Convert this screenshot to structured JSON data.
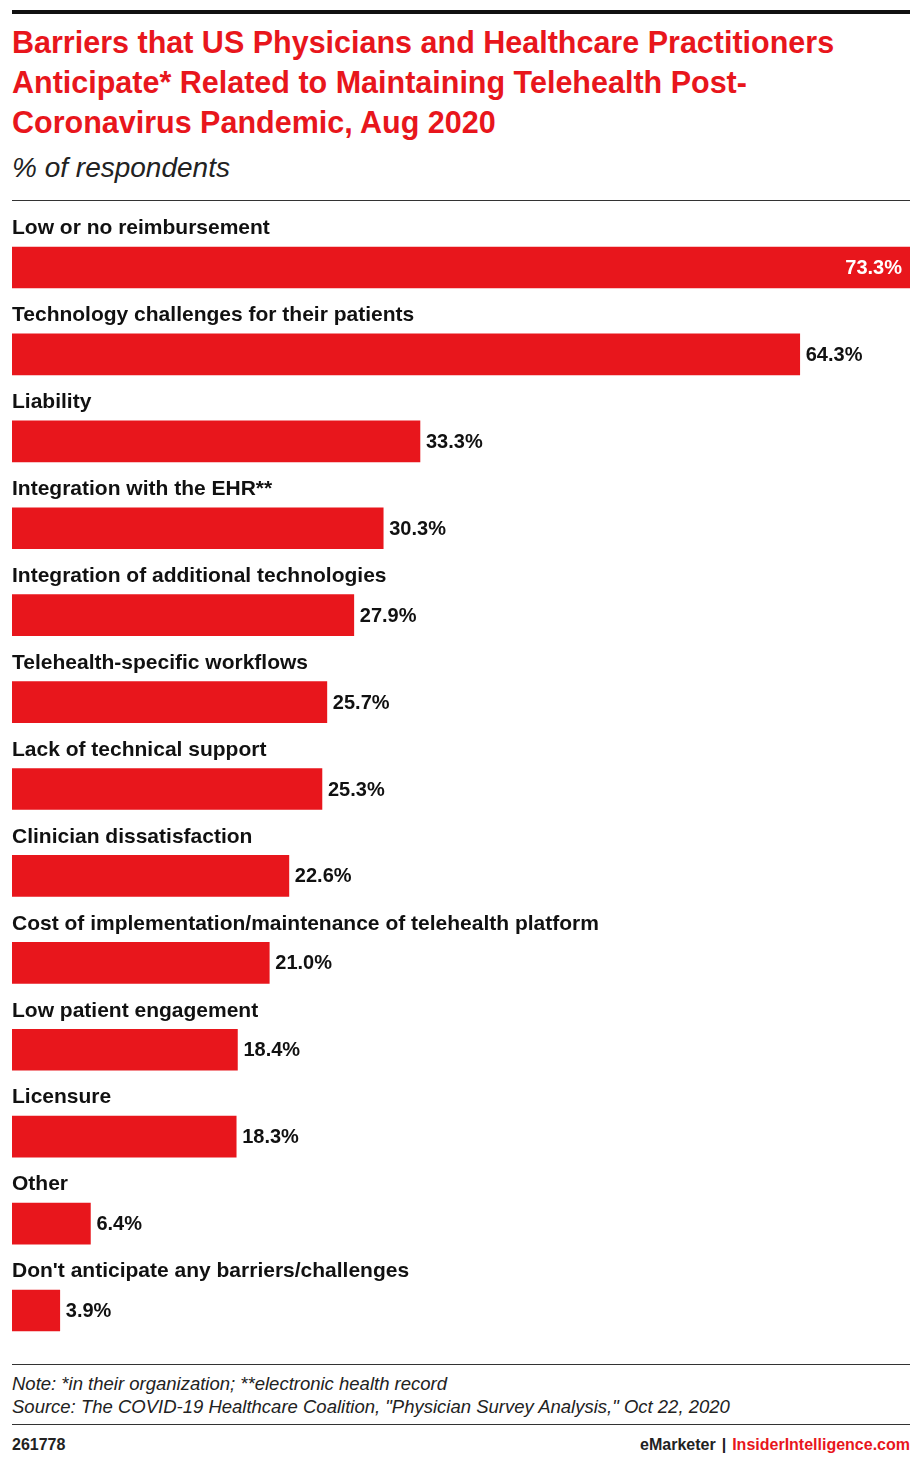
{
  "chart_data": {
    "type": "bar",
    "orientation": "horizontal",
    "title": "Barriers that US Physicians and Healthcare Practitioners Anticipate* Related to Maintaining Telehealth Post-Coronavirus Pandemic, Aug 2020",
    "subtitle": "% of respondents",
    "categories": [
      "Low or no reimbursement",
      "Technology challenges for their patients",
      "Liability",
      "Integration with the EHR**",
      "Integration of additional technologies",
      "Telehealth-specific workflows",
      "Lack of technical support",
      "Clinician dissatisfaction",
      "Cost of implementation/maintenance of telehealth platform",
      "Low patient engagement",
      "Licensure",
      "Other",
      "Don't anticipate any barriers/challenges"
    ],
    "values": [
      73.3,
      64.3,
      33.3,
      30.3,
      27.9,
      25.7,
      25.3,
      22.6,
      21.0,
      18.4,
      18.3,
      6.4,
      3.9
    ],
    "value_labels": [
      "73.3%",
      "64.3%",
      "33.3%",
      "30.3%",
      "27.9%",
      "25.7%",
      "25.3%",
      "22.6%",
      "21.0%",
      "18.4%",
      "18.3%",
      "6.4%",
      "3.9%"
    ],
    "color": "#e8161c",
    "xlim": [
      0,
      73.3
    ],
    "grid": false,
    "data_labels": true,
    "tick_labels": false,
    "note": "Note: *in their organization; **electronic health record",
    "source": "Source: The COVID-19 Healthcare Coalition, \"Physician Survey Analysis,\" Oct 22, 2020",
    "code": "261778",
    "credit": [
      "eMarketer",
      "|",
      "InsiderIntelligence.com"
    ]
  }
}
